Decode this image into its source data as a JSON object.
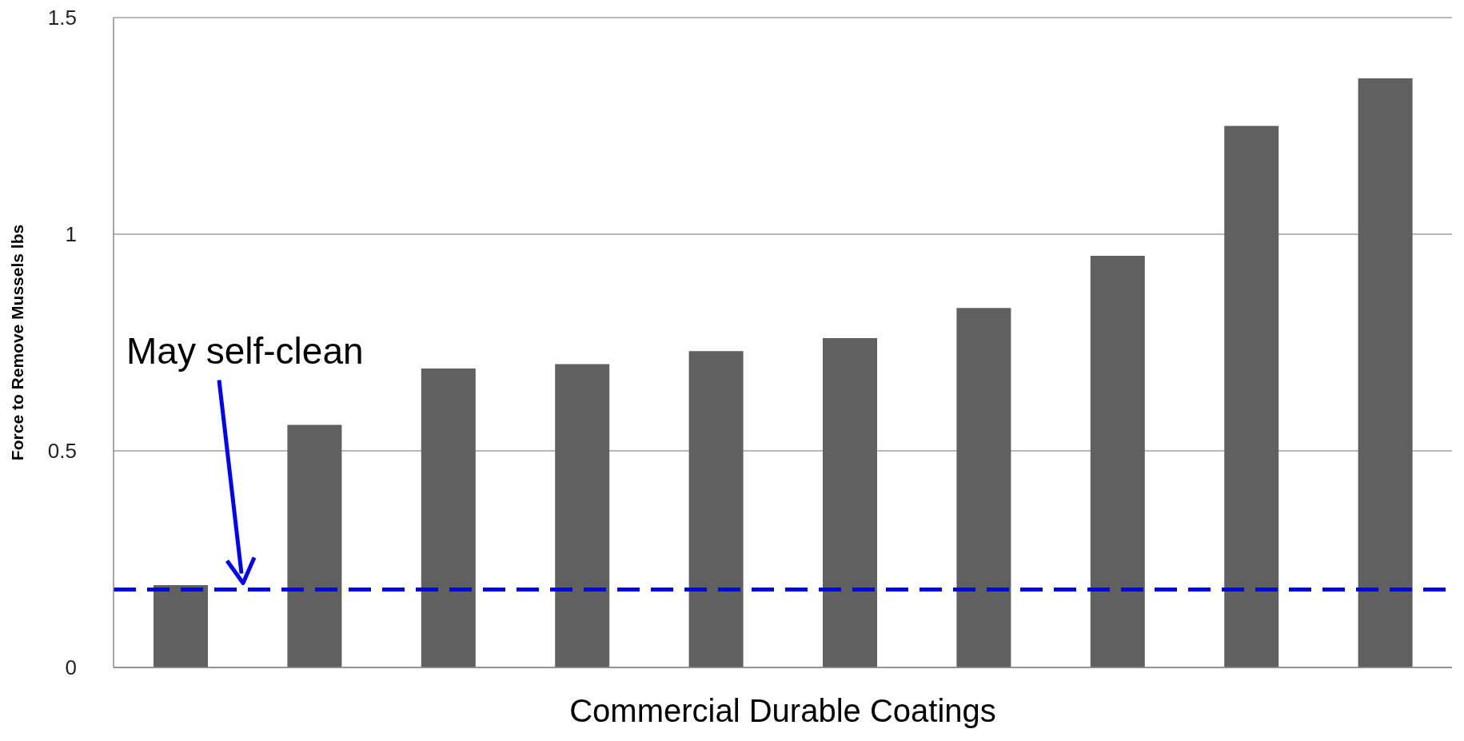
{
  "chart_data": {
    "type": "bar",
    "xlabel": "Commercial Durable Coatings",
    "ylabel": "Force to Remove Mussels lbs",
    "categories": [
      null,
      null,
      null,
      null,
      null,
      null,
      null,
      null,
      null,
      null
    ],
    "values": [
      0.19,
      0.56,
      0.69,
      0.7,
      0.73,
      0.76,
      0.83,
      0.95,
      1.25,
      1.36
    ],
    "color": "#606060",
    "ylim": [
      0,
      1.5
    ],
    "yticks": [
      0,
      0.5,
      1,
      1.5
    ],
    "grid": "y",
    "legend": false,
    "annotations": [
      "May self-clean"
    ],
    "ref_lines": [
      {
        "axis": "y",
        "value": 0.18,
        "color": "#0000ff",
        "line_style": "dashed"
      }
    ]
  }
}
